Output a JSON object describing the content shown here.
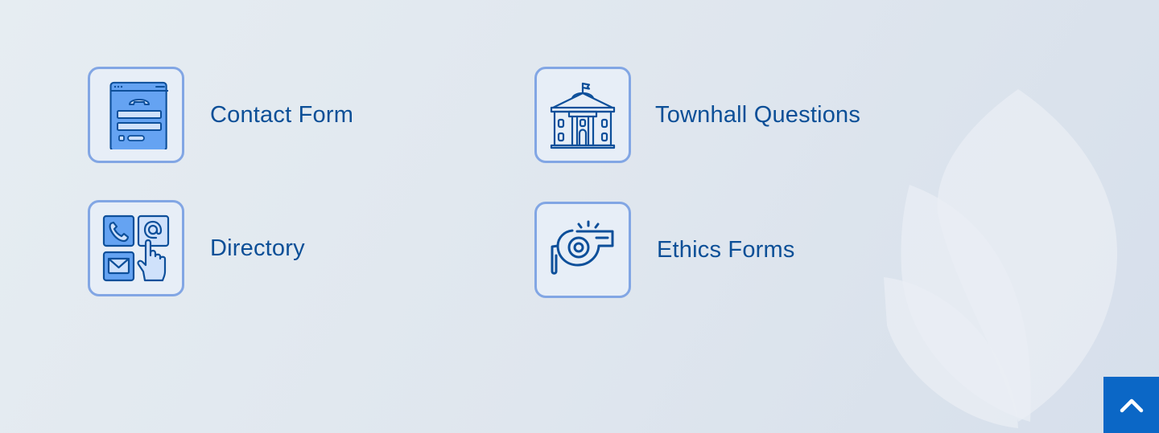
{
  "links": [
    {
      "label": "Contact Form",
      "icon": "contact-form-icon"
    },
    {
      "label": "Townhall Questions",
      "icon": "town-hall-icon"
    },
    {
      "label": "Directory",
      "icon": "directory-icon"
    },
    {
      "label": "Ethics Forms",
      "icon": "whistle-icon"
    }
  ],
  "back_to_top": {
    "icon": "chevron-up-icon"
  },
  "colors": {
    "label_text": "#0c4f97",
    "icon_border": "#82a6e4",
    "icon_stroke": "#0d4f9a",
    "icon_fill": "#65a3f2",
    "back_to_top_bg": "#0b67c6",
    "background": "#e2e9f0"
  }
}
